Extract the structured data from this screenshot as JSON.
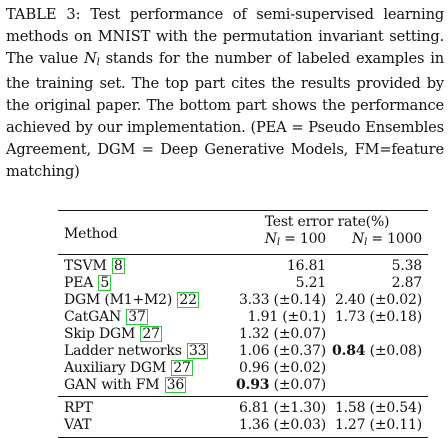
{
  "caption": {
    "label": "TABLE 3:",
    "text_1": "Test performance of semi-supervised learning methods on MNIST with the permutation invariant setting. The value",
    "symbol": "N",
    "symbol_sub": "l",
    "text_2": "stands for the number of labeled examples in the training set. The top part cites the results provided by the original paper. The bottom part shows the performance achieved by our implementation. (PEA = Pseudo Ensembles Agreement, DGM = Deep Generative Models, FM=feature matching)"
  },
  "table": {
    "header": {
      "method": "Method",
      "group": "Test error rate(%)",
      "col_a": {
        "symbol": "N",
        "sub": "l",
        "eq": "= 100"
      },
      "col_b": {
        "symbol": "N",
        "sub": "l",
        "eq": "= 1000"
      }
    },
    "rows_cited": [
      {
        "name": "TSVM",
        "cite": "8",
        "a": "16.81",
        "b": "5.38",
        "a_best": false,
        "b_best": false
      },
      {
        "name": "PEA",
        "cite": "5",
        "a": "5.21",
        "b": "2.87",
        "a_best": false,
        "b_best": false
      },
      {
        "name": "DGM (M1+M2)",
        "cite": "22",
        "a": "3.33 (±0.14)",
        "b": "2.40 (±0.02)",
        "a_best": false,
        "b_best": false
      },
      {
        "name": "CatGAN",
        "cite": "37",
        "a": "1.91 (±0.1)",
        "b": "1.73 (±0.18)",
        "a_best": false,
        "b_best": false
      },
      {
        "name": "Skip DGM",
        "cite": "27",
        "a": "1.32 (±0.07)",
        "b": "",
        "a_best": false,
        "b_best": false
      },
      {
        "name": "Ladder networks",
        "cite": "33",
        "a": "1.06 (±0.37)",
        "b_bold": "0.84",
        "b_rest": " (±0.08)",
        "a_best": false,
        "b_best": true
      },
      {
        "name": "Auxiliary DGM",
        "cite": "27",
        "a": "0.96 (±0.02)",
        "b": "",
        "a_best": false,
        "b_best": false
      },
      {
        "name": "GAN with FM",
        "cite": "36",
        "a_bold": "0.93",
        "a_rest": " (±0.07)",
        "b": "",
        "a_best": true,
        "b_best": false
      }
    ],
    "rows_ours": [
      {
        "name": "RPT",
        "a": "6.81 (±1.30)",
        "b": "1.58 (±0.54)"
      },
      {
        "name": "VAT",
        "a": "1.36 (±0.03)",
        "b": "1.27 (±0.11)"
      }
    ]
  }
}
